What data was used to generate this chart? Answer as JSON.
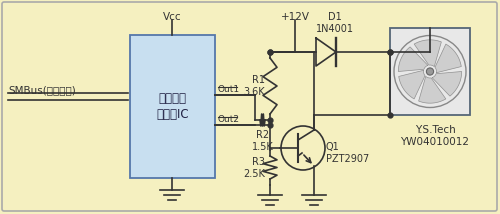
{
  "bg_color": "#f5f0c0",
  "line_color": "#333333",
  "ic_facecolor": "#c8dff0",
  "ic_edgecolor": "#5577aa",
  "fan_facecolor": "#e8e8e8",
  "fan_edgecolor": "#556677",
  "smbus_label": "SMBus(至控制器)",
  "vcc_label": "Vcc",
  "v12_label": "+12V",
  "r1_label": "R1\n3.6K",
  "r2_label": "R2\n1.5K",
  "r3_label": "R3\n2.5K",
  "d1_label": "D1\n1N4001",
  "q1_label": "Q1\nPZT2907",
  "ic_text_line1": "数字温度",
  "ic_text_line2": "传感器IC",
  "out1_label": "Out1",
  "out2_label": "Out2",
  "fan_label1": "Y.S.Tech",
  "fan_label2": "YW04010012",
  "font_size": 7.5
}
